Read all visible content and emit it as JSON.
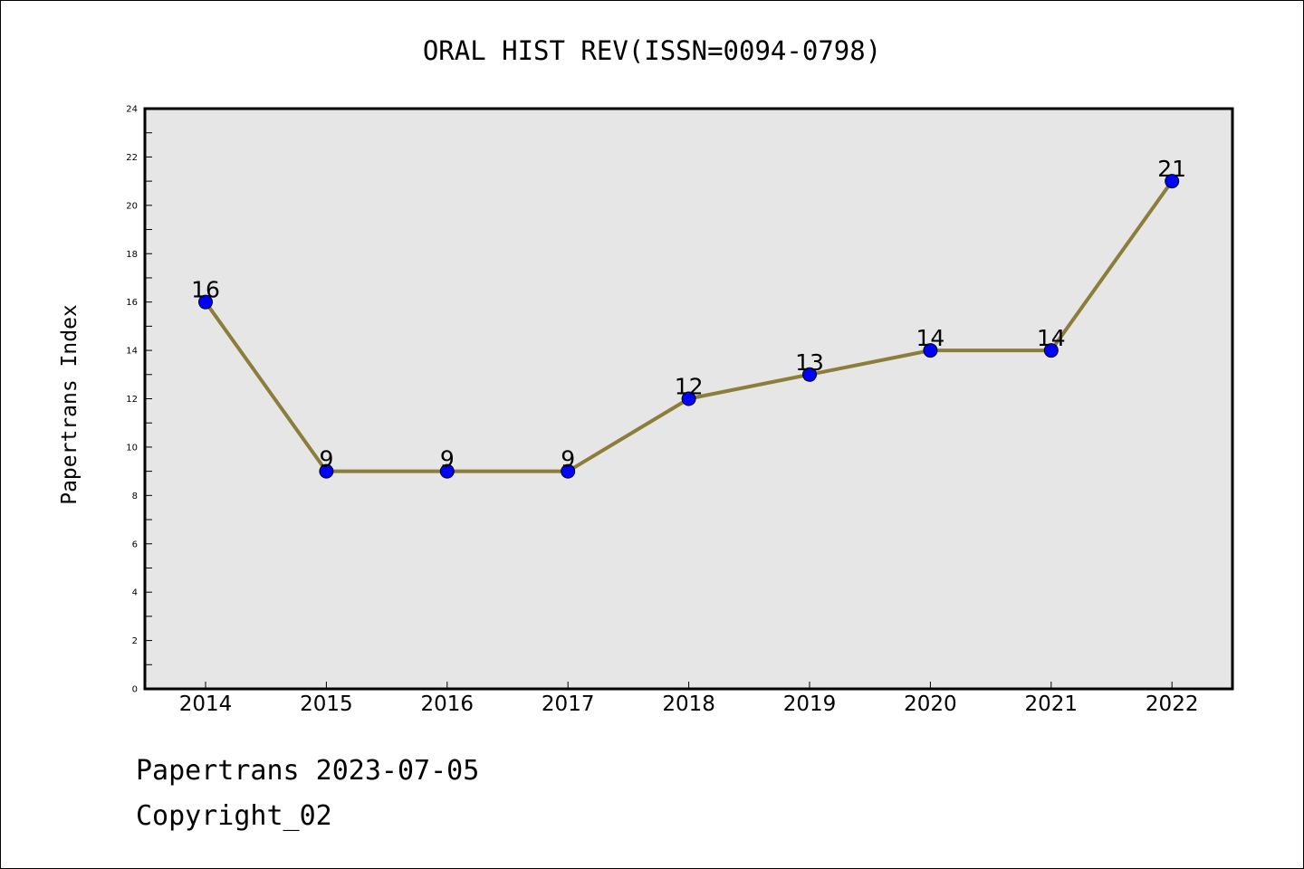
{
  "chart_data": {
    "type": "line",
    "title": "ORAL HIST REV(ISSN=0094-0798)",
    "xlabel": "",
    "ylabel": "Papertrans Index",
    "categories": [
      "2014",
      "2015",
      "2016",
      "2017",
      "2018",
      "2019",
      "2020",
      "2021",
      "2022"
    ],
    "series": [
      {
        "values": [
          16,
          9,
          9,
          9,
          12,
          13,
          14,
          14,
          21
        ]
      }
    ],
    "data_labels": [
      "16",
      "9",
      "9",
      "9",
      "12",
      "13",
      "14",
      "14",
      "21"
    ],
    "ylim": [
      0,
      24
    ],
    "y_ticks": [
      0,
      2,
      4,
      6,
      8,
      10,
      12,
      14,
      16,
      18,
      20,
      22,
      24
    ],
    "grid": false,
    "legend": "none",
    "colors": {
      "plot_background": "#e6e6e6",
      "line": "#8b7d3a",
      "marker": "#0000ff"
    }
  },
  "footer": {
    "line1": "Papertrans 2023-07-05",
    "line2": "Copyright_02"
  }
}
